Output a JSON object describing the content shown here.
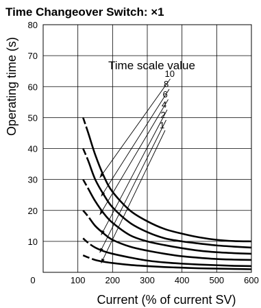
{
  "chart_data": {
    "type": "line",
    "title": "Time Changeover Switch: ×1",
    "xlabel": "Current (% of current SV)",
    "ylabel": "Operating time (s)",
    "xlim": [
      0,
      600
    ],
    "ylim": [
      0,
      80
    ],
    "x_ticks": [
      0,
      100,
      200,
      300,
      400,
      500,
      600
    ],
    "y_ticks": [
      10,
      20,
      30,
      40,
      50,
      60,
      70,
      80
    ],
    "grid": true,
    "legend_title": "Time scale value",
    "series": [
      {
        "name": "10",
        "x": [
          115,
          130,
          150,
          175,
          200,
          250,
          300,
          350,
          400,
          450,
          500,
          550,
          600
        ],
        "y": [
          50,
          45,
          38,
          31,
          26,
          20,
          16.5,
          14,
          12.5,
          11.3,
          10.5,
          10.1,
          10
        ]
      },
      {
        "name": "8",
        "x": [
          115,
          130,
          150,
          175,
          200,
          250,
          300,
          350,
          400,
          450,
          500,
          550,
          600
        ],
        "y": [
          40,
          36,
          30,
          25,
          21,
          16,
          13,
          11,
          10,
          9.3,
          8.7,
          8.3,
          8
        ]
      },
      {
        "name": "6",
        "x": [
          115,
          130,
          150,
          175,
          200,
          250,
          300,
          350,
          400,
          450,
          500,
          550,
          600
        ],
        "y": [
          30,
          27,
          23,
          19,
          16,
          12,
          10,
          8.8,
          7.8,
          7,
          6.5,
          6.2,
          6
        ]
      },
      {
        "name": "4",
        "x": [
          115,
          130,
          150,
          175,
          200,
          250,
          300,
          350,
          400,
          450,
          500,
          550,
          600
        ],
        "y": [
          20,
          18,
          15,
          12.5,
          10.5,
          8.3,
          7,
          6,
          5.2,
          4.7,
          4.3,
          4.1,
          4
        ]
      },
      {
        "name": "2",
        "x": [
          115,
          130,
          150,
          175,
          200,
          250,
          300,
          350,
          400,
          450,
          500,
          550,
          600
        ],
        "y": [
          11,
          9.5,
          8,
          6.8,
          6,
          4.8,
          3.8,
          3.2,
          2.8,
          2.5,
          2.3,
          2.1,
          2
        ]
      },
      {
        "name": "1",
        "x": [
          115,
          130,
          150,
          175,
          200,
          250,
          300,
          350,
          400,
          450,
          500,
          550,
          600
        ],
        "y": [
          5.5,
          4.8,
          4,
          3.4,
          3,
          2.4,
          2,
          1.7,
          1.5,
          1.3,
          1.2,
          1.1,
          1
        ]
      }
    ]
  }
}
